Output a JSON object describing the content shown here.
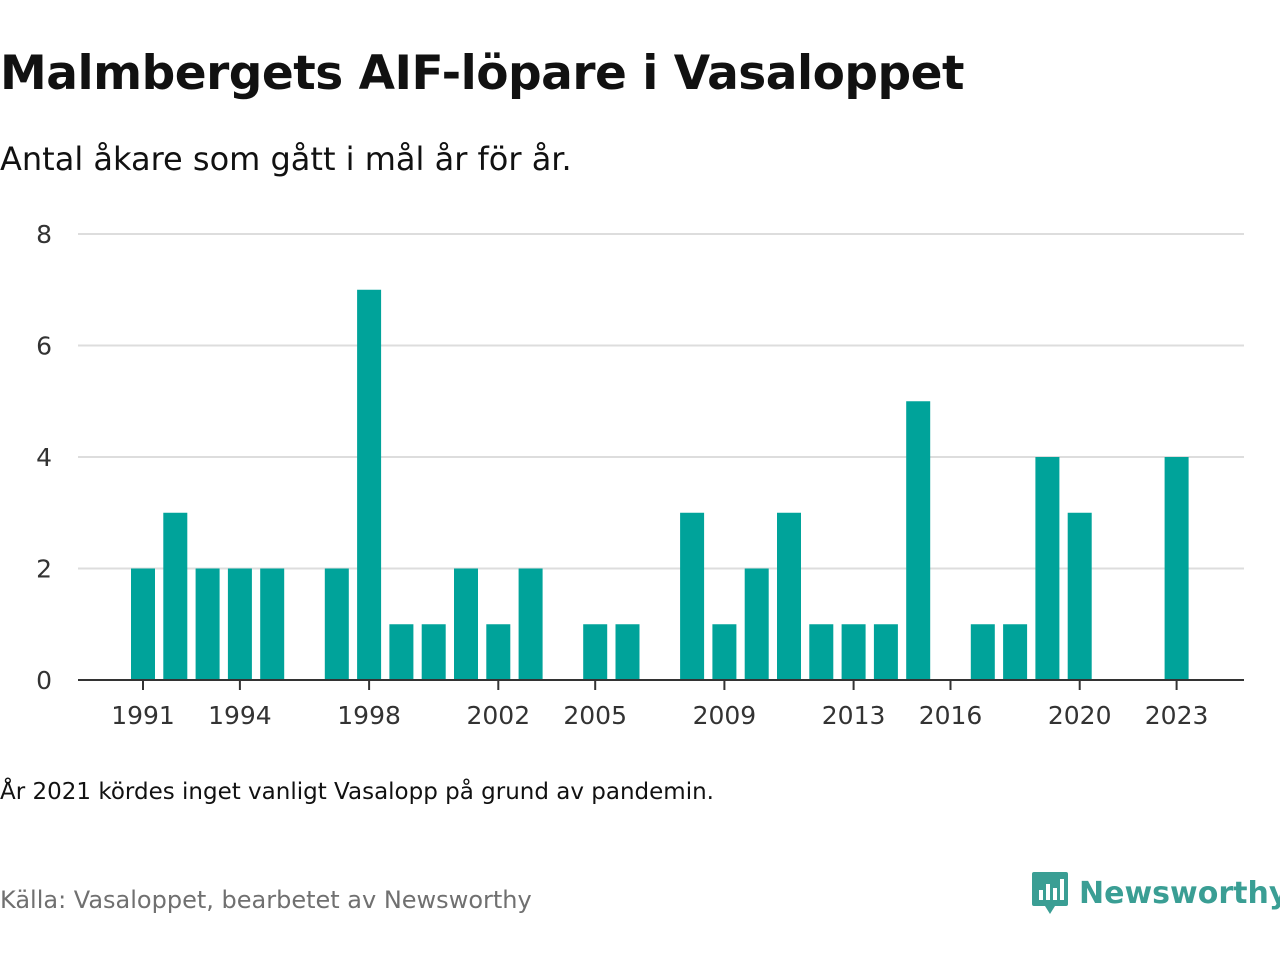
{
  "title": "Malmbergets AIF-löpare i Vasaloppet",
  "subtitle": "Antal åkare som gått i mål år för år.",
  "note": "År 2021 kördes inget vanligt Vasalopp på grund av pandemin.",
  "source": "Källa: Vasaloppet, bearbetet av Newsworthy",
  "logo": {
    "text": "Newsworthy",
    "icon": "chat-bar-chart-icon",
    "color": "#3a9e94"
  },
  "colors": {
    "bar": "#00a39a",
    "grid": "#dddddd",
    "axis": "#333333"
  },
  "chart_data": {
    "type": "bar",
    "title": "Malmbergets AIF-löpare i Vasaloppet",
    "subtitle": "Antal åkare som gått i mål år för år.",
    "xlabel": "",
    "ylabel": "",
    "ylim": [
      0,
      8
    ],
    "yticks": [
      0,
      2,
      4,
      6,
      8
    ],
    "xticks": [
      1991,
      1994,
      1998,
      2002,
      2005,
      2009,
      2013,
      2016,
      2020,
      2023
    ],
    "xlim": [
      1990,
      2024
    ],
    "grid": true,
    "legend": "none",
    "points": [
      {
        "x": 1991,
        "y": 2
      },
      {
        "x": 1992,
        "y": 3
      },
      {
        "x": 1993,
        "y": 2
      },
      {
        "x": 1994,
        "y": 2
      },
      {
        "x": 1995,
        "y": 2
      },
      {
        "x": 1996,
        "y": 0
      },
      {
        "x": 1997,
        "y": 2
      },
      {
        "x": 1998,
        "y": 7
      },
      {
        "x": 1999,
        "y": 1
      },
      {
        "x": 2000,
        "y": 1
      },
      {
        "x": 2001,
        "y": 2
      },
      {
        "x": 2002,
        "y": 1
      },
      {
        "x": 2003,
        "y": 2
      },
      {
        "x": 2004,
        "y": 0
      },
      {
        "x": 2005,
        "y": 1
      },
      {
        "x": 2006,
        "y": 1
      },
      {
        "x": 2007,
        "y": 0
      },
      {
        "x": 2008,
        "y": 3
      },
      {
        "x": 2009,
        "y": 1
      },
      {
        "x": 2010,
        "y": 2
      },
      {
        "x": 2011,
        "y": 3
      },
      {
        "x": 2012,
        "y": 1
      },
      {
        "x": 2013,
        "y": 1
      },
      {
        "x": 2014,
        "y": 1
      },
      {
        "x": 2015,
        "y": 5
      },
      {
        "x": 2016,
        "y": 0
      },
      {
        "x": 2017,
        "y": 1
      },
      {
        "x": 2018,
        "y": 1
      },
      {
        "x": 2019,
        "y": 4
      },
      {
        "x": 2020,
        "y": 3
      },
      {
        "x": 2021,
        "y": 0
      },
      {
        "x": 2022,
        "y": 0
      },
      {
        "x": 2023,
        "y": 4
      }
    ]
  }
}
